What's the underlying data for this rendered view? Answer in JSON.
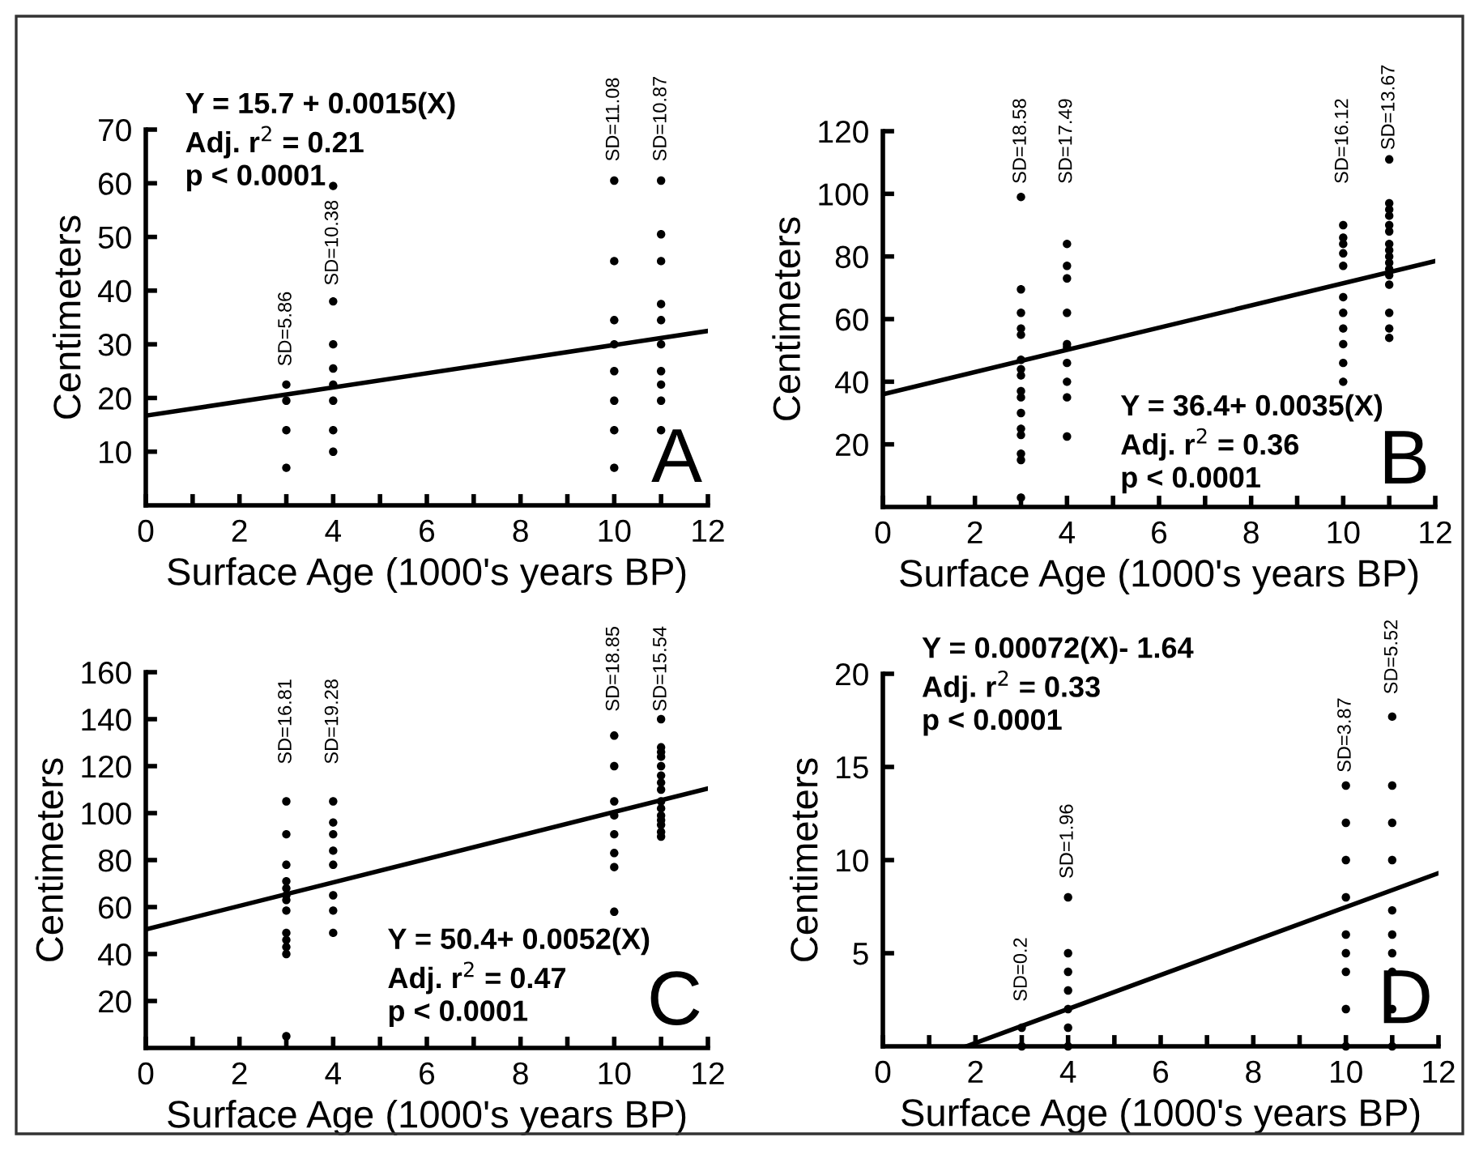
{
  "chart_data": [
    {
      "type": "scatter",
      "xlabel": "Surface Age (1000's years BP)",
      "ylabel": "Centimeters",
      "xlim": [
        0,
        12
      ],
      "ylim": [
        0,
        70
      ],
      "xticks": [
        0,
        {
          "value": 1,
          "label": null
        },
        2,
        {
          "value": 3,
          "label": null
        },
        4,
        {
          "value": 5,
          "label": null
        },
        6,
        {
          "value": 7,
          "label": null
        },
        8,
        {
          "value": 9,
          "label": null
        },
        10,
        {
          "value": 11,
          "label": null
        },
        12
      ],
      "yticks": [
        10,
        20,
        30,
        40,
        50,
        60,
        70
      ],
      "grid": false,
      "series": [
        {
          "marker": "circle",
          "color": "#000000",
          "x": [
            3,
            3,
            3,
            3,
            4,
            4,
            4,
            4,
            4,
            4,
            4,
            4,
            10,
            10,
            10,
            10,
            10,
            10,
            10,
            10,
            11,
            11,
            11,
            11,
            11,
            11,
            11,
            11,
            11,
            11
          ],
          "values": [
            7,
            14,
            19.5,
            22.5,
            10,
            14,
            19.5,
            22.5,
            25.5,
            30,
            38,
            59.5,
            7,
            14,
            19.5,
            25,
            30,
            34.5,
            45.5,
            60.5,
            14,
            19.5,
            22.5,
            25,
            30,
            34.5,
            37.5,
            45.5,
            50.5,
            60.5
          ]
        },
        {
          "type": "line",
          "color": "#000000",
          "x": [
            0,
            12
          ],
          "values": [
            16.7,
            32.5
          ]
        }
      ],
      "annotations": [
        "Y = 15.7 + 0.0015(X)",
        "Adj. r$^{2}$ = 0.21",
        "p < 0.0001",
        "A",
        "SD=5.86",
        "SD=10.38",
        "SD=11.08",
        "SD=10.87"
      ]
    },
    {
      "type": "scatter",
      "xlabel": "Surface Age (1000's years BP)",
      "ylabel": "Centimeters",
      "xlim": [
        0,
        12
      ],
      "ylim": [
        0,
        120
      ],
      "xticks": [
        0,
        {
          "value": 1,
          "label": null
        },
        2,
        {
          "value": 3,
          "label": null
        },
        4,
        {
          "value": 5,
          "label": null
        },
        6,
        {
          "value": 7,
          "label": null
        },
        8,
        {
          "value": 9,
          "label": null
        },
        10,
        {
          "value": 11,
          "label": null
        },
        12
      ],
      "yticks": [
        20,
        40,
        60,
        80,
        100,
        120
      ],
      "grid": false,
      "series": [
        {
          "marker": "circle",
          "color": "#000000",
          "x": [
            3,
            3,
            3,
            3,
            3,
            3,
            3,
            3,
            3,
            3,
            3,
            3,
            3,
            3,
            3,
            3,
            4,
            4,
            4,
            4,
            4,
            4,
            4,
            4,
            4,
            4,
            10,
            10,
            10,
            10,
            10,
            10,
            10,
            10,
            10,
            10,
            10,
            11,
            11,
            11,
            11,
            11,
            11,
            11,
            11,
            11,
            11,
            11,
            11,
            11,
            11,
            11,
            11
          ],
          "values": [
            99,
            69.5,
            62,
            57,
            55,
            47,
            44,
            42,
            37,
            35,
            30,
            25,
            23,
            17,
            15,
            3,
            84,
            77,
            73,
            62,
            52,
            51,
            46,
            40,
            35,
            22.5,
            90,
            86,
            84,
            81,
            77,
            67,
            62,
            57,
            52,
            46,
            40,
            111,
            97,
            95,
            93,
            90,
            88,
            84,
            82,
            80,
            78,
            76,
            74,
            71,
            62,
            57,
            54
          ]
        },
        {
          "type": "line",
          "color": "#000000",
          "x": [
            0,
            12
          ],
          "values": [
            36,
            78.5
          ]
        }
      ],
      "annotations": [
        "Y = 36.4+ 0.0035(X)",
        "Adj. r$^{2}$ = 0.36",
        "p < 0.0001",
        "B",
        "SD=18.58",
        "SD=17.49",
        "SD=16.12",
        "SD=13.67"
      ]
    },
    {
      "type": "scatter",
      "xlabel": "Surface Age (1000's years BP)",
      "ylabel": "Centimeters",
      "xlim": [
        0,
        12
      ],
      "ylim": [
        0,
        160
      ],
      "xticks": [
        0,
        {
          "value": 1,
          "label": null
        },
        2,
        {
          "value": 3,
          "label": null
        },
        4,
        {
          "value": 5,
          "label": null
        },
        6,
        {
          "value": 7,
          "label": null
        },
        8,
        {
          "value": 9,
          "label": null
        },
        10,
        {
          "value": 11,
          "label": null
        },
        12
      ],
      "yticks": [
        20,
        40,
        60,
        80,
        100,
        120,
        140,
        160
      ],
      "grid": false,
      "series": [
        {
          "marker": "circle",
          "color": "#000000",
          "x": [
            3,
            3,
            3,
            3,
            3,
            3,
            3,
            3,
            3,
            3,
            3,
            3,
            3,
            4,
            4,
            4,
            4,
            4,
            4,
            4,
            4,
            10,
            10,
            10,
            10,
            10,
            10,
            10,
            10,
            11,
            11,
            11,
            11,
            11,
            11,
            11,
            11,
            11,
            11,
            11,
            11,
            11,
            11,
            11
          ],
          "values": [
            105,
            91,
            78,
            71,
            68,
            65,
            63,
            58.5,
            49,
            46,
            43,
            40,
            5,
            105,
            96,
            91,
            84,
            78,
            65,
            58.5,
            49,
            133,
            120,
            105,
            99,
            91,
            83,
            77,
            58,
            140,
            128,
            126,
            124,
            120,
            116,
            113,
            110,
            105,
            102,
            99,
            97,
            95,
            92,
            90
          ]
        },
        {
          "type": "line",
          "color": "#000000",
          "x": [
            0,
            12
          ],
          "values": [
            50.5,
            110.5
          ]
        }
      ],
      "annotations": [
        "Y = 50.4+ 0.0052(X)",
        "Adj. r$^{2}$ = 0.47",
        "p < 0.0001",
        "C",
        "SD=16.81",
        "SD=19.28",
        "SD=18.85",
        "SD=15.54"
      ]
    },
    {
      "type": "scatter",
      "xlabel": "Surface Age (1000's years BP)",
      "ylabel": "Centimeters",
      "xlim": [
        0,
        12
      ],
      "ylim": [
        0,
        20
      ],
      "xticks": [
        0,
        {
          "value": 1,
          "label": null
        },
        2,
        {
          "value": 3,
          "label": null
        },
        4,
        {
          "value": 5,
          "label": null
        },
        6,
        {
          "value": 7,
          "label": null
        },
        8,
        {
          "value": 9,
          "label": null
        },
        10,
        {
          "value": 11,
          "label": null
        },
        12
      ],
      "yticks": [
        5,
        10,
        15,
        20
      ],
      "grid": false,
      "series": [
        {
          "marker": "circle",
          "color": "#000000",
          "x": [
            3,
            3,
            4,
            4,
            4,
            4,
            4,
            4,
            4,
            10,
            10,
            10,
            10,
            10,
            10,
            10,
            10,
            10,
            11,
            11,
            11,
            11,
            11,
            11,
            11,
            11,
            11,
            11
          ],
          "values": [
            0,
            1,
            0,
            1,
            2,
            3,
            4,
            5,
            8,
            0,
            2,
            4,
            5,
            6,
            8,
            10,
            12,
            14,
            0,
            2,
            4,
            5,
            6,
            7.3,
            10,
            12,
            14,
            17.7
          ]
        },
        {
          "type": "line",
          "color": "#000000",
          "x": [
            1.8,
            12
          ],
          "values": [
            0,
            9.3
          ]
        }
      ],
      "annotations": [
        "Y = 0.00072(X)- 1.64",
        "Adj. r$^{2}$ = 0.33",
        "p < 0.0001",
        "D",
        "SD=0.2",
        "SD=1.96",
        "SD=3.87",
        "SD=5.52"
      ]
    }
  ]
}
